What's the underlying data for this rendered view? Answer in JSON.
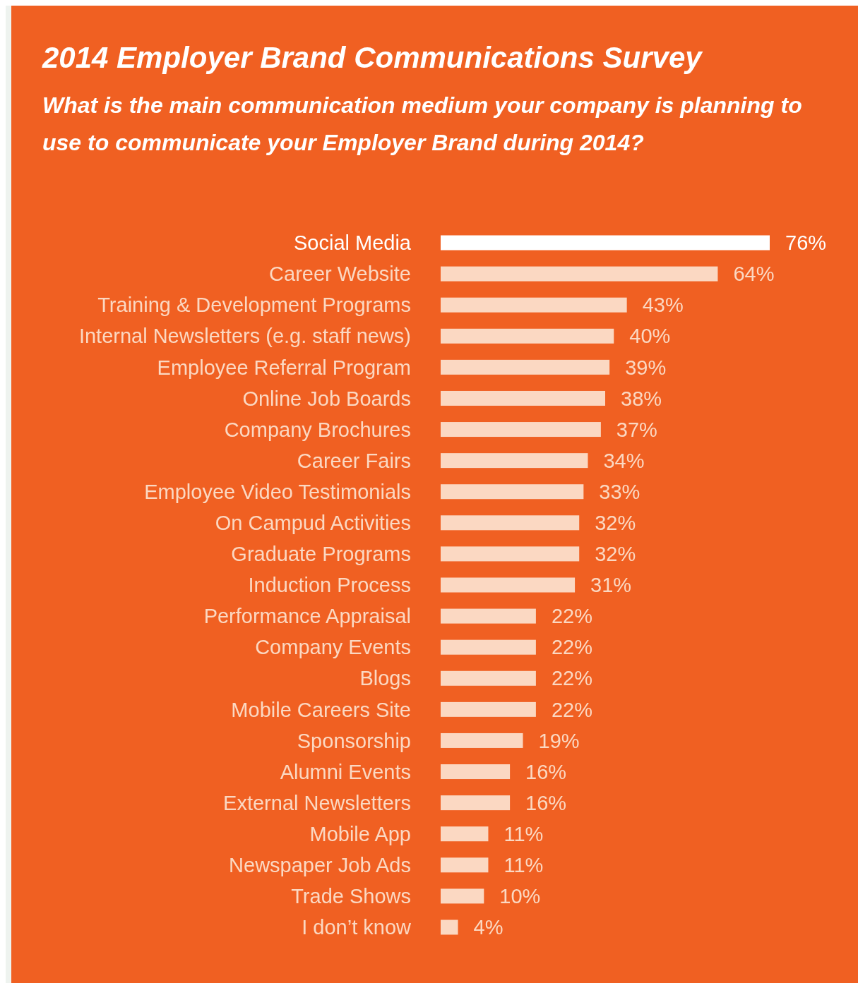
{
  "chart_data": {
    "type": "bar",
    "orientation": "horizontal",
    "title": "2014 Employer Brand Communications Survey",
    "subtitle": "What is the main communication medium your company is planning to use to communicate your Employer Brand during 2014?",
    "categories": [
      "Social Media",
      "Career Website",
      "Training & Development Programs",
      "Internal Newsletters (e.g. staff news)",
      "Employee Referral Program",
      "Online Job Boards",
      "Company Brochures",
      "Career Fairs",
      "Employee Video Testimonials",
      "On Campud Activities",
      "Graduate Programs",
      "Induction Process",
      "Performance Appraisal",
      "Company Events",
      "Blogs",
      "Mobile Careers Site",
      "Sponsorship",
      "Alumni Events",
      "External Newsletters",
      "Mobile App",
      "Newspaper Job Ads",
      "Trade Shows",
      "I don’t know"
    ],
    "values": [
      76,
      64,
      43,
      40,
      39,
      38,
      37,
      34,
      33,
      32,
      32,
      31,
      22,
      22,
      22,
      22,
      19,
      16,
      16,
      11,
      11,
      10,
      4
    ],
    "value_labels": [
      "76%",
      "64%",
      "43%",
      "40%",
      "39%",
      "38%",
      "37%",
      "34%",
      "33%",
      "32%",
      "32%",
      "31%",
      "22%",
      "22%",
      "22%",
      "22%",
      "19%",
      "16%",
      "16%",
      "11%",
      "11%",
      "10%",
      "4%"
    ],
    "colors": [
      "#ffffff",
      "#fbd8c2",
      "#fbd8c2",
      "#fbd8c2",
      "#fbd8c2",
      "#fbd8c2",
      "#fbd8c2",
      "#fbd8c2",
      "#fbd8c2",
      "#fbd8c2",
      "#fbd8c2",
      "#fbd8c2",
      "#fbd8c2",
      "#fbd8c2",
      "#fbd8c2",
      "#fbd8c2",
      "#fbd8c2",
      "#fbd8c2",
      "#fbd8c2",
      "#fbd8c2",
      "#fbd8c2",
      "#fbd8c2",
      "#fbd8c2"
    ]
  }
}
